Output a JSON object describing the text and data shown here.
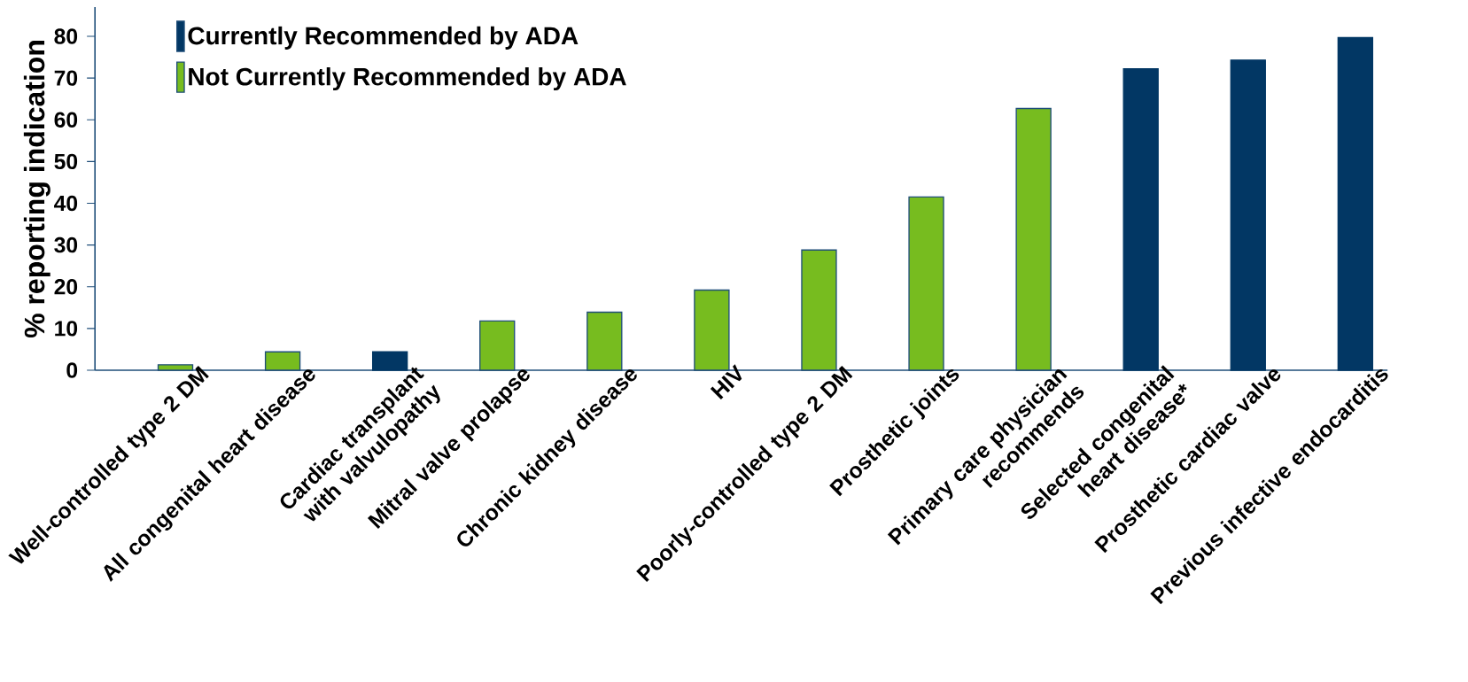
{
  "chart_data": {
    "type": "bar",
    "ylabel": "% reporting indication",
    "categories": [
      "Well-controlled type 2 DM",
      "All congenital heart disease",
      "Cardiac transplant with valvulopathy",
      "Mitral valve prolapse",
      "Chronic kidney disease",
      "HIV",
      "Poorly-controlled type 2 DM",
      "Prosthetic joints",
      "Primary care physician recommends",
      "Selected congenital heart disease*",
      "Prosthetic cardiac valve",
      "Previous infective endocarditis"
    ],
    "series": [
      {
        "name": "Currently Recommended by ADA",
        "color": "#023764",
        "values": [
          null,
          null,
          4.4,
          null,
          null,
          null,
          null,
          null,
          null,
          72.2,
          74.3,
          79.7
        ]
      },
      {
        "name": "Not Currently Recommended by ADA",
        "color": "#77bc1f",
        "values": [
          1.3,
          4.4,
          null,
          11.8,
          13.9,
          19.2,
          28.8,
          41.5,
          62.7,
          null,
          null,
          null
        ]
      }
    ],
    "ylim": [
      0,
      87
    ],
    "yticks": [
      0,
      10,
      20,
      30,
      40,
      50,
      60,
      70,
      80
    ],
    "grid": false,
    "legend": "top left"
  }
}
